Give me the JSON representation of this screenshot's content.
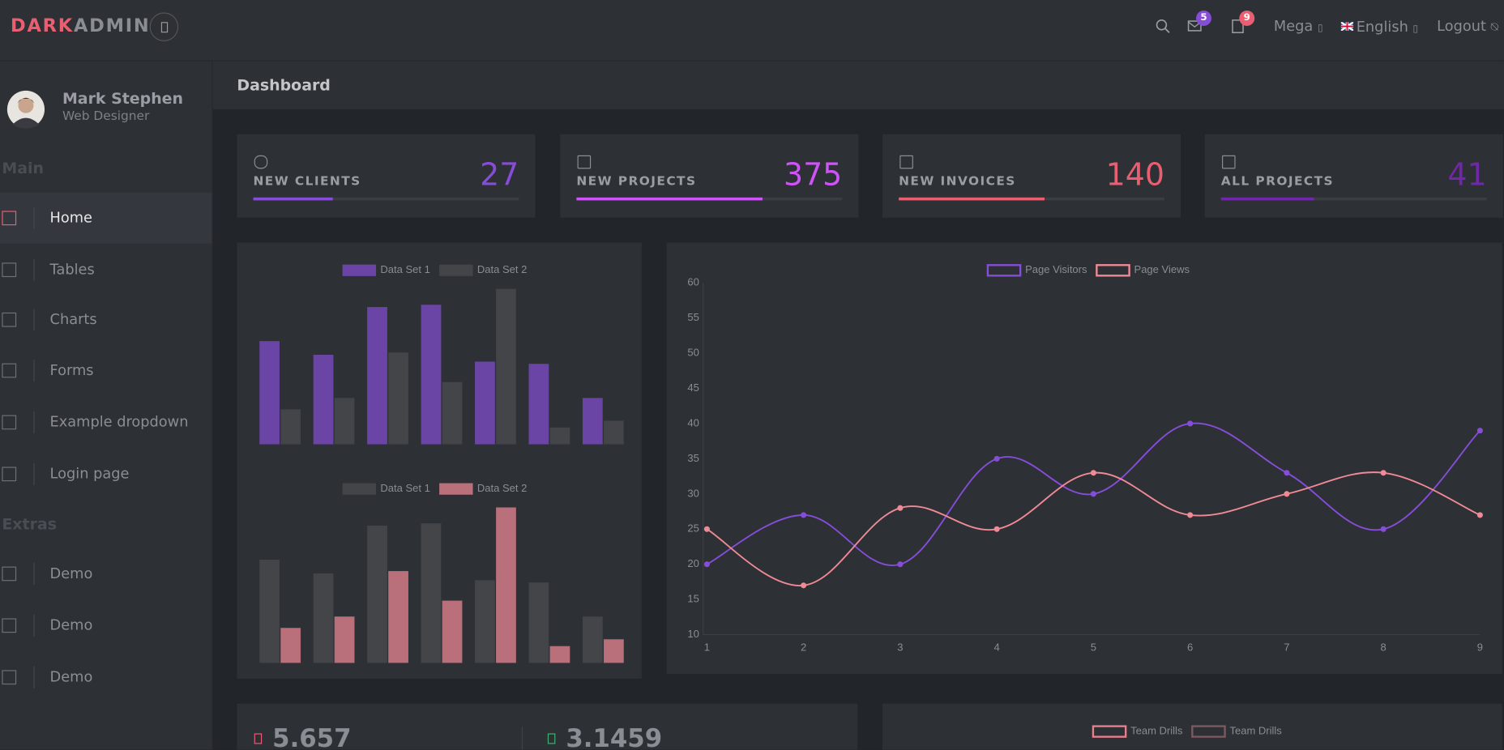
{
  "header": {
    "brand_a": "DARK",
    "brand_b": "ADMIN",
    "mail_badge": 5,
    "notes_badge": 9,
    "mega": "Mega",
    "language": "English",
    "logout": "Logout"
  },
  "sidebar": {
    "name": "Mark Stephen",
    "role": "Web Designer",
    "sections": [
      {
        "title": "Main",
        "items": [
          "Home",
          "Tables",
          "Charts",
          "Forms",
          "Example dropdown",
          "Login page"
        ]
      },
      {
        "title": "Extras",
        "items": [
          "Demo",
          "Demo",
          "Demo"
        ]
      }
    ]
  },
  "page_title": "Dashboard",
  "stats": [
    {
      "label": "NEW CLIENTS",
      "value": 27,
      "progress": 30,
      "color": "#864dd9"
    },
    {
      "label": "NEW PROJECTS",
      "value": 375,
      "progress": 70,
      "color": "#cf53f9"
    },
    {
      "label": "NEW INVOICES",
      "value": 140,
      "progress": 55,
      "color": "#e95f71"
    },
    {
      "label": "ALL PROJECTS",
      "value": 41,
      "progress": 35,
      "color": "#7127ac"
    }
  ],
  "chart_data": [
    {
      "type": "bar",
      "categories": [
        null,
        null,
        null,
        null,
        null,
        null,
        null
      ],
      "ylim": [
        20,
        90
      ],
      "series": [
        {
          "name": "Data Set 1",
          "color": "#6b45a6",
          "values": [
            65,
            59,
            80,
            81,
            56,
            55,
            40
          ]
        },
        {
          "name": "Data Set 2",
          "color": "#434549",
          "values": [
            35,
            40,
            60,
            47,
            88,
            27,
            30
          ]
        }
      ]
    },
    {
      "type": "bar",
      "categories": [
        null,
        null,
        null,
        null,
        null,
        null,
        null
      ],
      "ylim": [
        20,
        90
      ],
      "series": [
        {
          "name": "Data Set 1",
          "color": "#434549",
          "values": [
            65,
            59,
            80,
            81,
            56,
            55,
            40
          ]
        },
        {
          "name": "Data Set 2",
          "color": "#b9707b",
          "values": [
            35,
            40,
            60,
            47,
            88,
            27,
            30
          ]
        }
      ]
    },
    {
      "type": "line",
      "x": [
        1,
        2,
        3,
        4,
        5,
        6,
        7,
        8,
        9
      ],
      "xlim": [
        1,
        9
      ],
      "xticks": [
        1,
        2,
        3,
        4,
        5,
        6,
        7,
        8,
        9
      ],
      "ylim": [
        10,
        60
      ],
      "yticks": [
        10,
        15,
        20,
        25,
        30,
        35,
        40,
        45,
        50,
        55,
        60
      ],
      "grid": false,
      "series": [
        {
          "name": "Page Visitors",
          "color": "#864dd9",
          "values": [
            20,
            27,
            20,
            35,
            30,
            40,
            33,
            25,
            39
          ]
        },
        {
          "name": "Page Views",
          "color": "#f08a96",
          "values": [
            25,
            17,
            28,
            25,
            33,
            27,
            30,
            33,
            27
          ]
        }
      ]
    }
  ],
  "bottom": {
    "stat_a": 5.657,
    "stat_b": 3.1459,
    "legend": [
      {
        "name": "Team Drills",
        "color": "#e77f8e"
      },
      {
        "name": "Team Drills",
        "color": "#7a5a60"
      }
    ]
  }
}
